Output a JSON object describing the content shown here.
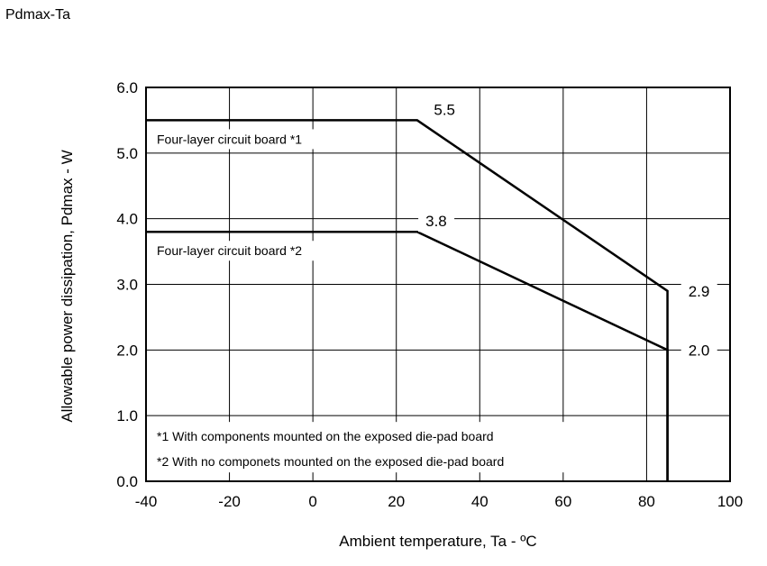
{
  "page_title": "Pdmax-Ta",
  "chart_data": {
    "type": "line",
    "xlabel": "Ambient temperature, Ta - ºC",
    "ylabel": "Allowable power dissipation, Pdmax - W",
    "xlim": [
      -40,
      100
    ],
    "ylim": [
      0,
      6
    ],
    "x_ticks": [
      "-40",
      "-20",
      "0",
      "20",
      "40",
      "60",
      "80",
      "100"
    ],
    "y_ticks": [
      "0.0",
      "1.0",
      "2.0",
      "3.0",
      "4.0",
      "5.0",
      "6.0"
    ],
    "x_gridlines": [
      -40,
      -20,
      0,
      20,
      40,
      60,
      80,
      100
    ],
    "y_gridlines": [
      0,
      1,
      2,
      3,
      4,
      5,
      6
    ],
    "grid": true,
    "series": [
      {
        "name": "Four-layer circuit board *1",
        "points": [
          [
            -40,
            5.5
          ],
          [
            25,
            5.5
          ],
          [
            85,
            2.9
          ],
          [
            85,
            0
          ]
        ]
      },
      {
        "name": "Four-layer circuit board *2",
        "points": [
          [
            -40,
            3.8
          ],
          [
            25,
            3.8
          ],
          [
            85,
            2.0
          ],
          [
            85,
            0
          ]
        ]
      }
    ],
    "value_labels": [
      {
        "text": "5.5",
        "x": 29,
        "y": 5.5
      },
      {
        "text": "3.8",
        "x": 27,
        "y": 3.8
      },
      {
        "text": "2.9",
        "x": 90,
        "y": 2.9
      },
      {
        "text": "2.0",
        "x": 90,
        "y": 2.0
      }
    ],
    "footnotes": [
      "*1 With components mounted on the exposed die-pad board",
      "*2 With no componets mounted on the exposed die-pad board"
    ]
  }
}
